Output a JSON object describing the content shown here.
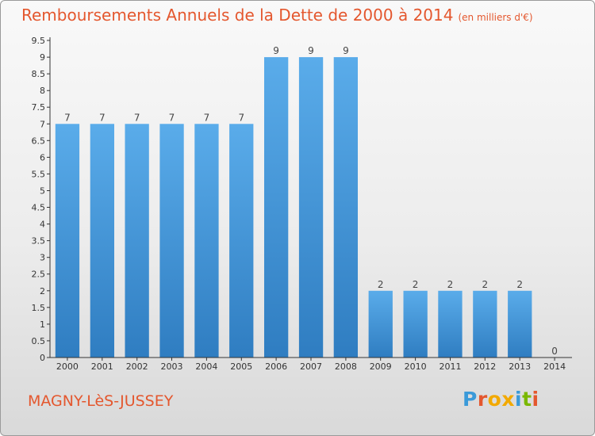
{
  "title": "Remboursements Annuels de la Dette de 2000 à 2014",
  "unit_note": "(en milliers d'€)",
  "commune": "MAGNY-LèS-JUSSEY",
  "logo": {
    "text": "Proxiti",
    "colors": [
      "#3a9ad9",
      "#e4572e",
      "#f2a900",
      "#f2a900",
      "#3a9ad9",
      "#7ab800",
      "#e4572e"
    ]
  },
  "colors": {
    "title": "#e4572e",
    "bar_top": "#5aacea",
    "bar_bottom": "#2f7dc1",
    "axis": "#333333",
    "tick_text": "#333333"
  },
  "chart_data": {
    "type": "bar",
    "title": "Remboursements Annuels de la Dette de 2000 à 2014",
    "xlabel": "",
    "ylabel": "",
    "categories": [
      "2000",
      "2001",
      "2002",
      "2003",
      "2004",
      "2005",
      "2006",
      "2007",
      "2008",
      "2009",
      "2010",
      "2011",
      "2012",
      "2013",
      "2014"
    ],
    "values": [
      7,
      7,
      7,
      7,
      7,
      7,
      9,
      9,
      9,
      2,
      2,
      2,
      2,
      2,
      0
    ],
    "data_labels": [
      "7",
      "7",
      "7",
      "7",
      "7",
      "7",
      "9",
      "9",
      "9",
      "2",
      "2",
      "2",
      "2",
      "2",
      "0"
    ],
    "ylim": [
      0,
      9.5
    ],
    "y_ticks": [
      "0",
      "0.5",
      "1",
      "1.5",
      "2",
      "2.5",
      "3",
      "3.5",
      "4",
      "4.5",
      "5",
      "5.5",
      "6",
      "6.5",
      "7",
      "7.5",
      "8",
      "8.5",
      "9",
      "9.5"
    ],
    "grid": false,
    "legend": "none"
  }
}
